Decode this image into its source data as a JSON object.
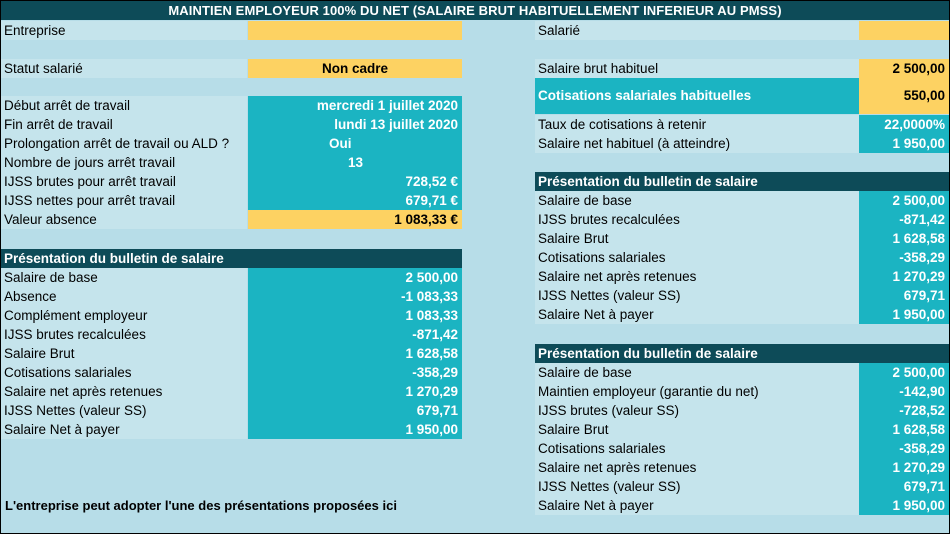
{
  "title": "MAINTIEN EMPLOYEUR 100% DU NET (SALAIRE BRUT HABITUELLEMENT INFERIEUR AU PMSS)",
  "left": {
    "entreprise_label": "Entreprise",
    "entreprise_value": "",
    "statut_label": "Statut salarié",
    "statut_value": "Non cadre",
    "arret": [
      {
        "label": "Début arrêt de travail",
        "value": "mercredi 1 juillet 2020"
      },
      {
        "label": "Fin arrêt de travail",
        "value": "lundi 13 juillet 2020"
      },
      {
        "label": "Prolongation arrêt de travail ou ALD ?",
        "value": "Oui"
      },
      {
        "label": "Nombre de jours arrêt travail",
        "value": "13"
      },
      {
        "label": "IJSS brutes pour arrêt travail",
        "value": "728,52 €"
      },
      {
        "label": "IJSS nettes pour arrêt travail",
        "value": "679,71 €"
      }
    ],
    "absence_label": "Valeur absence",
    "absence_value": "1 083,33 €",
    "bulletin_header": "Présentation du bulletin de salaire",
    "bulletin": [
      {
        "label": "Salaire de base",
        "value": "2 500,00"
      },
      {
        "label": "Absence",
        "value": "-1 083,33"
      },
      {
        "label": "Complément employeur",
        "value": "1 083,33"
      },
      {
        "label": "IJSS brutes recalculées",
        "value": "-871,42"
      },
      {
        "label": "Salaire Brut",
        "value": "1 628,58"
      },
      {
        "label": "Cotisations salariales",
        "value": "-358,29"
      },
      {
        "label": "Salaire net après retenues",
        "value": "1 270,29"
      },
      {
        "label": "IJSS Nettes (valeur SS)",
        "value": "679,71"
      },
      {
        "label": "Salaire Net à payer",
        "value": "1 950,00"
      }
    ],
    "note": "L'entreprise peut adopter l'une  des présentations proposées ici"
  },
  "right": {
    "salarie_label": "Salarié",
    "salarie_value": "",
    "brut_label": "Salaire brut habituel",
    "brut_value": "2 500,00",
    "cotis_label": "Cotisations salariales habituelles",
    "cotis_value": "550,00",
    "taux_label": "Taux de cotisations à retenir",
    "taux_value": "22,0000%",
    "net_label": "Salaire net habituel (à atteindre)",
    "net_value": "1 950,00",
    "bulletin1_header": "Présentation du bulletin de salaire",
    "bulletin1": [
      {
        "label": "Salaire de base",
        "value": "2 500,00"
      },
      {
        "label": "IJSS brutes recalculées",
        "value": "-871,42"
      },
      {
        "label": "Salaire Brut",
        "value": "1 628,58"
      },
      {
        "label": "Cotisations salariales",
        "value": "-358,29"
      },
      {
        "label": "Salaire net après retenues",
        "value": "1 270,29"
      },
      {
        "label": "IJSS Nettes (valeur SS)",
        "value": "679,71"
      },
      {
        "label": "Salaire Net à payer",
        "value": "1 950,00"
      }
    ],
    "bulletin2_header": "Présentation du bulletin de salaire",
    "bulletin2": [
      {
        "label": "Salaire de base",
        "value": "2 500,00"
      },
      {
        "label": "Maintien employeur (garantie du net)",
        "value": "-142,90"
      },
      {
        "label": "IJSS brutes (valeur SS)",
        "value": "-728,52"
      },
      {
        "label": "Salaire Brut",
        "value": "1 628,58"
      },
      {
        "label": "Cotisations salariales",
        "value": "-358,29"
      },
      {
        "label": "Salaire net après retenues",
        "value": "1 270,29"
      },
      {
        "label": "IJSS Nettes (valeur SS)",
        "value": "679,71"
      },
      {
        "label": "Salaire Net à payer",
        "value": "1 950,00"
      }
    ]
  }
}
